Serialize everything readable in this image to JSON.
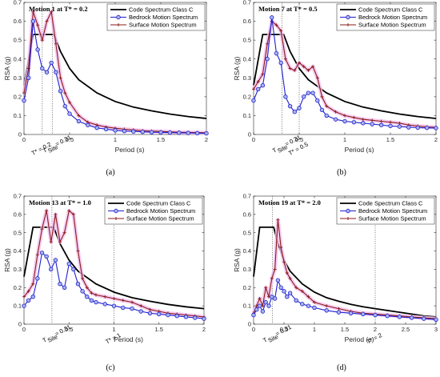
{
  "colors": {
    "code": "#000000",
    "bedrock": "#1f1fd0",
    "bedrock_marker_fill": "#a9b4ec",
    "surface": "#8b1a1a",
    "surface_glow": "#f3c2f0"
  },
  "chart_data": [
    {
      "id": "a",
      "type": "line",
      "title": "Motion 1 at T* = 0.2",
      "caption": "(a)",
      "xlabel": "Period (s)",
      "ylabel": "RSA (g)",
      "xlim": [
        0,
        2
      ],
      "ylim": [
        0,
        0.7
      ],
      "xticks": [
        0,
        0.5,
        1,
        1.5,
        2
      ],
      "xtick_labels": [
        "0",
        "0.5",
        "1",
        "1.5",
        "2"
      ],
      "yticks": [
        0,
        0.1,
        0.2,
        0.3,
        0.4,
        0.5,
        0.6,
        0.7
      ],
      "ytick_labels": [
        "0",
        "0.1",
        "0.2",
        "0.3",
        "0.4",
        "0.5",
        "0.6",
        "0.7"
      ],
      "grid": false,
      "legend": "top-right",
      "vlines": [
        {
          "x": 0.2,
          "label": "T* = 0.2"
        },
        {
          "x": 0.31,
          "label_main": "T",
          "label_sub": "Site",
          "label_rest": " = 0.31"
        }
      ],
      "series": [
        {
          "name": "Code Spectrum Class C",
          "x": [
            0,
            0.1,
            0.33,
            0.4,
            0.5,
            0.6,
            0.8,
            1.0,
            1.2,
            1.4,
            1.6,
            1.8,
            2.0
          ],
          "y": [
            0.26,
            0.53,
            0.53,
            0.44,
            0.35,
            0.29,
            0.22,
            0.175,
            0.145,
            0.125,
            0.108,
            0.095,
            0.085
          ]
        },
        {
          "name": "Bedrock Motion Spectrum",
          "x": [
            0,
            0.05,
            0.1,
            0.15,
            0.2,
            0.25,
            0.3,
            0.35,
            0.4,
            0.45,
            0.5,
            0.6,
            0.7,
            0.8,
            0.9,
            1.0,
            1.1,
            1.2,
            1.3,
            1.4,
            1.5,
            1.6,
            1.7,
            1.8,
            1.9,
            2.0
          ],
          "y": [
            0.18,
            0.3,
            0.6,
            0.45,
            0.35,
            0.33,
            0.38,
            0.33,
            0.23,
            0.15,
            0.11,
            0.07,
            0.05,
            0.035,
            0.028,
            0.022,
            0.018,
            0.016,
            0.014,
            0.012,
            0.011,
            0.01,
            0.009,
            0.008,
            0.007,
            0.006
          ]
        },
        {
          "name": "Surface Motion Spectrum",
          "x": [
            0,
            0.05,
            0.1,
            0.15,
            0.2,
            0.25,
            0.3,
            0.35,
            0.4,
            0.45,
            0.5,
            0.6,
            0.7,
            0.8,
            0.9,
            1.0,
            1.1,
            1.2,
            1.3,
            1.4,
            1.5,
            1.6,
            1.7,
            1.8,
            1.9,
            2.0
          ],
          "y": [
            0.22,
            0.35,
            0.65,
            0.58,
            0.5,
            0.6,
            0.65,
            0.48,
            0.3,
            0.22,
            0.17,
            0.1,
            0.065,
            0.05,
            0.04,
            0.033,
            0.028,
            0.024,
            0.02,
            0.018,
            0.016,
            0.014,
            0.012,
            0.011,
            0.01,
            0.009
          ]
        }
      ]
    },
    {
      "id": "b",
      "type": "line",
      "title": "Motion 7 at T* = 0.5",
      "caption": "(b)",
      "xlabel": "Period (s)",
      "ylabel": "RSA (g)",
      "xlim": [
        0,
        2
      ],
      "ylim": [
        0,
        0.7
      ],
      "xticks": [
        0,
        0.5,
        1,
        1.5,
        2
      ],
      "xtick_labels": [
        "0",
        "0.5",
        "1",
        "1.5",
        "2"
      ],
      "yticks": [
        0,
        0.1,
        0.2,
        0.3,
        0.4,
        0.5,
        0.6,
        0.7
      ],
      "ytick_labels": [
        "0",
        "0.1",
        "0.2",
        "0.3",
        "0.4",
        "0.5",
        "0.6",
        "0.7"
      ],
      "grid": false,
      "legend": "top-right",
      "vlines": [
        {
          "x": 0.31,
          "label_main": "T",
          "label_sub": "Site",
          "label_rest": " = 0.31"
        },
        {
          "x": 0.5,
          "label": "T* = 0.5"
        }
      ],
      "series": [
        {
          "name": "Code Spectrum Class C",
          "x": [
            0,
            0.1,
            0.33,
            0.4,
            0.5,
            0.6,
            0.8,
            1.0,
            1.2,
            1.4,
            1.6,
            1.8,
            2.0
          ],
          "y": [
            0.26,
            0.53,
            0.53,
            0.44,
            0.35,
            0.29,
            0.22,
            0.175,
            0.145,
            0.125,
            0.108,
            0.095,
            0.085
          ]
        },
        {
          "name": "Bedrock Motion Spectrum",
          "x": [
            0,
            0.05,
            0.1,
            0.15,
            0.2,
            0.25,
            0.3,
            0.35,
            0.4,
            0.45,
            0.5,
            0.55,
            0.6,
            0.65,
            0.7,
            0.75,
            0.8,
            0.9,
            1.0,
            1.1,
            1.2,
            1.3,
            1.4,
            1.5,
            1.6,
            1.7,
            1.8,
            1.9,
            2.0
          ],
          "y": [
            0.18,
            0.24,
            0.26,
            0.4,
            0.62,
            0.43,
            0.38,
            0.2,
            0.15,
            0.12,
            0.14,
            0.2,
            0.22,
            0.22,
            0.18,
            0.13,
            0.1,
            0.08,
            0.07,
            0.065,
            0.06,
            0.055,
            0.05,
            0.045,
            0.042,
            0.038,
            0.036,
            0.035,
            0.034
          ]
        },
        {
          "name": "Surface Motion Spectrum",
          "x": [
            0,
            0.05,
            0.1,
            0.15,
            0.2,
            0.25,
            0.3,
            0.35,
            0.4,
            0.45,
            0.5,
            0.55,
            0.6,
            0.65,
            0.7,
            0.75,
            0.8,
            0.9,
            1.0,
            1.1,
            1.2,
            1.3,
            1.4,
            1.5,
            1.6,
            1.7,
            1.8,
            1.9,
            2.0
          ],
          "y": [
            0.24,
            0.28,
            0.32,
            0.48,
            0.6,
            0.58,
            0.55,
            0.4,
            0.35,
            0.34,
            0.38,
            0.36,
            0.34,
            0.36,
            0.3,
            0.2,
            0.15,
            0.12,
            0.1,
            0.09,
            0.08,
            0.075,
            0.07,
            0.065,
            0.06,
            0.05,
            0.045,
            0.04,
            0.038
          ]
        }
      ]
    },
    {
      "id": "c",
      "type": "line",
      "title": "Motion 13 at T* = 1.0",
      "caption": "(c)",
      "xlabel": "Period (s)",
      "ylabel": "RSA (g)",
      "xlim": [
        0,
        2
      ],
      "ylim": [
        0,
        0.7
      ],
      "xticks": [
        0,
        0.5,
        1,
        1.5,
        2
      ],
      "xtick_labels": [
        "0",
        "0.5",
        "1",
        "1.5",
        "2"
      ],
      "yticks": [
        0,
        0.1,
        0.2,
        0.3,
        0.4,
        0.5,
        0.6,
        0.7
      ],
      "ytick_labels": [
        "0",
        "0.1",
        "0.2",
        "0.3",
        "0.4",
        "0.5",
        "0.6",
        "0.7"
      ],
      "grid": false,
      "legend": "top-right",
      "vlines": [
        {
          "x": 0.31,
          "label_main": "T",
          "label_sub": "Site",
          "label_rest": " = 0.31"
        },
        {
          "x": 1.0,
          "label": "T* = 1"
        }
      ],
      "series": [
        {
          "name": "Code Spectrum Class C",
          "x": [
            0,
            0.1,
            0.33,
            0.4,
            0.5,
            0.6,
            0.8,
            1.0,
            1.2,
            1.4,
            1.6,
            1.8,
            2.0
          ],
          "y": [
            0.26,
            0.53,
            0.53,
            0.44,
            0.35,
            0.29,
            0.22,
            0.175,
            0.145,
            0.125,
            0.108,
            0.095,
            0.085
          ]
        },
        {
          "name": "Bedrock Motion Spectrum",
          "x": [
            0,
            0.05,
            0.1,
            0.15,
            0.2,
            0.25,
            0.3,
            0.35,
            0.4,
            0.45,
            0.5,
            0.55,
            0.6,
            0.65,
            0.7,
            0.75,
            0.8,
            0.9,
            1.0,
            1.1,
            1.2,
            1.3,
            1.4,
            1.5,
            1.6,
            1.7,
            1.8,
            1.9,
            2.0
          ],
          "y": [
            0.1,
            0.13,
            0.15,
            0.25,
            0.39,
            0.37,
            0.3,
            0.35,
            0.22,
            0.2,
            0.33,
            0.3,
            0.22,
            0.18,
            0.15,
            0.13,
            0.12,
            0.11,
            0.1,
            0.09,
            0.085,
            0.07,
            0.06,
            0.055,
            0.05,
            0.045,
            0.04,
            0.035,
            0.03
          ]
        },
        {
          "name": "Surface Motion Spectrum",
          "x": [
            0,
            0.05,
            0.1,
            0.15,
            0.2,
            0.25,
            0.3,
            0.35,
            0.4,
            0.45,
            0.5,
            0.55,
            0.6,
            0.65,
            0.7,
            0.75,
            0.8,
            0.9,
            1.0,
            1.1,
            1.2,
            1.3,
            1.4,
            1.5,
            1.6,
            1.7,
            1.8,
            1.9,
            2.0
          ],
          "y": [
            0.15,
            0.18,
            0.22,
            0.38,
            0.52,
            0.62,
            0.45,
            0.6,
            0.45,
            0.5,
            0.62,
            0.6,
            0.4,
            0.25,
            0.2,
            0.17,
            0.16,
            0.15,
            0.14,
            0.13,
            0.12,
            0.1,
            0.08,
            0.07,
            0.06,
            0.055,
            0.05,
            0.045,
            0.04
          ]
        }
      ]
    },
    {
      "id": "d",
      "type": "line",
      "title": "Motion 19 at T* = 2.0",
      "caption": "(d)",
      "xlabel": "Period (s)",
      "ylabel": "RSA (g)",
      "xlim": [
        0,
        3
      ],
      "ylim": [
        0,
        0.7
      ],
      "xticks": [
        0,
        0.5,
        1,
        1.5,
        2,
        2.5,
        3
      ],
      "xtick_labels": [
        "0",
        "0.5",
        "1",
        "1.5",
        "2",
        "2.5",
        "3"
      ],
      "yticks": [
        0,
        0.1,
        0.2,
        0.3,
        0.4,
        0.5,
        0.6,
        0.7
      ],
      "ytick_labels": [
        "0",
        "0.1",
        "0.2",
        "0.3",
        "0.4",
        "0.5",
        "0.6",
        "0.7"
      ],
      "grid": false,
      "legend": "top-right",
      "vlines": [
        {
          "x": 0.31,
          "label_main": "T",
          "label_sub": "Site",
          "label_rest": " = 0.31"
        },
        {
          "x": 2.0,
          "label": "T* = 2"
        }
      ],
      "series": [
        {
          "name": "Code Spectrum Class C",
          "x": [
            0,
            0.1,
            0.33,
            0.4,
            0.5,
            0.6,
            0.8,
            1.0,
            1.2,
            1.4,
            1.6,
            1.8,
            2.0,
            2.2,
            2.4,
            2.6,
            2.8,
            3.0
          ],
          "y": [
            0.26,
            0.53,
            0.53,
            0.44,
            0.35,
            0.29,
            0.22,
            0.175,
            0.145,
            0.125,
            0.108,
            0.095,
            0.085,
            0.075,
            0.065,
            0.055,
            0.045,
            0.04
          ]
        },
        {
          "name": "Bedrock Motion Spectrum",
          "x": [
            0,
            0.05,
            0.1,
            0.15,
            0.2,
            0.25,
            0.3,
            0.35,
            0.4,
            0.45,
            0.5,
            0.55,
            0.6,
            0.7,
            0.8,
            0.9,
            1.0,
            1.2,
            1.4,
            1.6,
            1.8,
            2.0,
            2.2,
            2.4,
            2.6,
            2.8,
            3.0
          ],
          "y": [
            0.05,
            0.08,
            0.1,
            0.07,
            0.12,
            0.1,
            0.15,
            0.14,
            0.24,
            0.2,
            0.18,
            0.15,
            0.17,
            0.13,
            0.11,
            0.1,
            0.09,
            0.075,
            0.065,
            0.06,
            0.055,
            0.05,
            0.045,
            0.04,
            0.035,
            0.03,
            0.025
          ]
        },
        {
          "name": "Surface Motion Spectrum",
          "x": [
            0,
            0.05,
            0.1,
            0.15,
            0.2,
            0.25,
            0.3,
            0.35,
            0.4,
            0.45,
            0.5,
            0.55,
            0.6,
            0.7,
            0.8,
            0.9,
            1.0,
            1.2,
            1.4,
            1.6,
            1.8,
            2.0,
            2.2,
            2.4,
            2.6,
            2.8,
            3.0
          ],
          "y": [
            0.06,
            0.1,
            0.14,
            0.1,
            0.2,
            0.15,
            0.25,
            0.3,
            0.57,
            0.42,
            0.34,
            0.28,
            0.25,
            0.2,
            0.18,
            0.15,
            0.12,
            0.1,
            0.085,
            0.07,
            0.06,
            0.055,
            0.05,
            0.045,
            0.04,
            0.035,
            0.03
          ]
        }
      ]
    }
  ]
}
